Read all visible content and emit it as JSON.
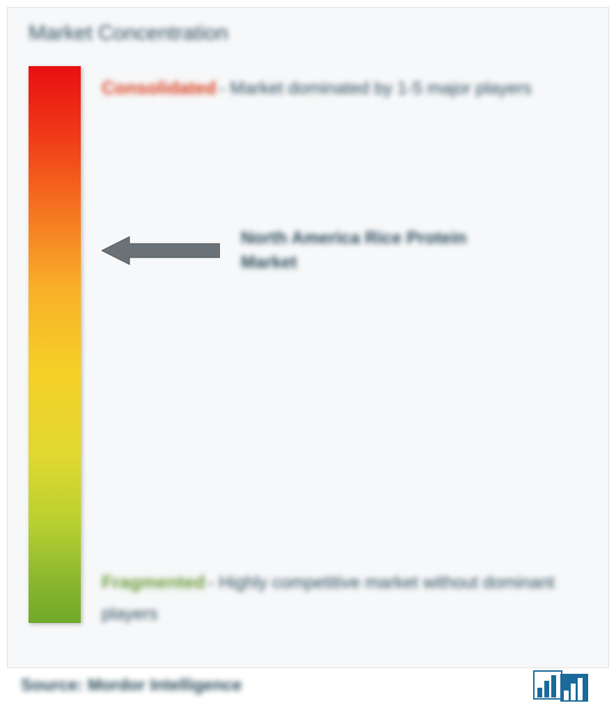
{
  "title": "Market Concentration",
  "gradient": {
    "colors": [
      "#e81010",
      "#f03818",
      "#f57020",
      "#f8b028",
      "#f5d028",
      "#e0d830",
      "#b8d030",
      "#8cb830",
      "#70a828"
    ],
    "stops": [
      0,
      12,
      25,
      40,
      55,
      70,
      82,
      92,
      100
    ]
  },
  "consolidated": {
    "label": "Consolidated",
    "separator": " - ",
    "description": "Market dominated by 1-5 major players"
  },
  "arrow": {
    "fill": "#6a7278",
    "stroke": "#4a5258"
  },
  "market_name": "North America Rice Protein Market",
  "fragmented": {
    "label": "Fragmented",
    "separator": " - ",
    "description": "Highly competitive market without dominant players"
  },
  "source": "Source: Mordor Intelligence",
  "logo": {
    "bar_color": "#1a6a9a",
    "bg_color": "#ffffff"
  }
}
